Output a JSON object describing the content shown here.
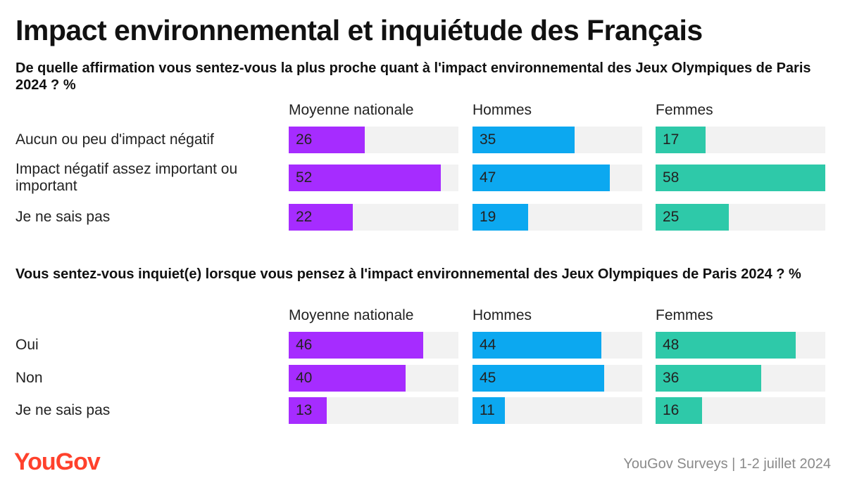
{
  "title": "Impact environnemental et inquiétude des Français",
  "colors": {
    "moyenne": "#a62cff",
    "hommes": "#0ca8f0",
    "femmes": "#2ec9a9",
    "track": "#f2f2f2",
    "brand": "#ff412c"
  },
  "footer": {
    "logo": "YouGov",
    "source": "YouGov Surveys | 1-2 juillet 2024"
  },
  "chart_data": [
    {
      "type": "bar",
      "title": "De quelle affirmation vous sentez-vous la plus proche quant à l'impact environnemental des Jeux Olympiques de Paris 2024 ? %",
      "categories": [
        "Aucun ou peu d'impact négatif",
        "Impact négatif assez important ou important",
        "Je ne sais pas"
      ],
      "series": [
        {
          "name": "Moyenne nationale",
          "values": [
            26,
            52,
            22
          ]
        },
        {
          "name": "Hommes",
          "values": [
            35,
            47,
            19
          ]
        },
        {
          "name": "Femmes",
          "values": [
            17,
            58,
            25
          ]
        }
      ],
      "xlim": [
        0,
        58
      ]
    },
    {
      "type": "bar",
      "title": "Vous sentez-vous inquiet(e) lorsque vous pensez à l'impact environnemental des Jeux Olympiques de Paris 2024 ? %",
      "categories": [
        "Oui",
        "Non",
        "Je ne sais pas"
      ],
      "series": [
        {
          "name": "Moyenne nationale",
          "values": [
            46,
            40,
            13
          ]
        },
        {
          "name": "Hommes",
          "values": [
            44,
            45,
            11
          ]
        },
        {
          "name": "Femmes",
          "values": [
            48,
            36,
            16
          ]
        }
      ],
      "xlim": [
        0,
        58
      ]
    }
  ]
}
